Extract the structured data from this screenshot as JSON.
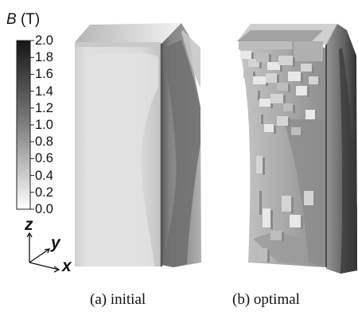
{
  "colorbar": {
    "symbol": "B",
    "unit": "(T)",
    "ticks": [
      "2.0",
      "1.8",
      "1.6",
      "1.4",
      "1.2",
      "1.0",
      "0.8",
      "0.6",
      "0.4",
      "0.2",
      "0.0"
    ]
  },
  "axes": {
    "z": "z",
    "y": "y",
    "x": "x"
  },
  "captions": {
    "initial": "(a) initial",
    "optimal": "(b) optimal"
  }
}
